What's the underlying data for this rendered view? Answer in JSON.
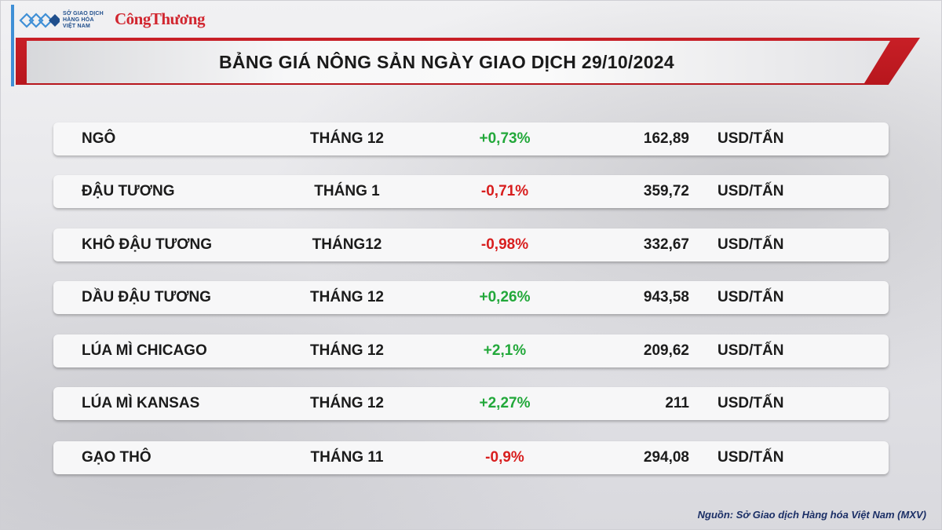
{
  "logo": {
    "exchange_lines": [
      "SỞ GIAO DỊCH",
      "HÀNG HÓA",
      "VIỆT NAM"
    ],
    "brand": "CôngThương"
  },
  "title": "BẢNG GIÁ NÔNG SẢN NGÀY GIAO DỊCH 29/10/2024",
  "colors": {
    "accent": "#c81f26",
    "positive": "#22a83a",
    "negative": "#d81e1e",
    "side_bar": "#3f8fd6"
  },
  "rows": [
    {
      "name": "NGÔ",
      "month": "THÁNG 12",
      "change": "+0,73%",
      "direction": "up",
      "price": "162,89",
      "unit": "USD/TẤN"
    },
    {
      "name": "ĐẬU TƯƠNG",
      "month": "THÁNG 1",
      "change": "-0,71%",
      "direction": "down",
      "price": "359,72",
      "unit": "USD/TẤN"
    },
    {
      "name": "KHÔ ĐẬU TƯƠNG",
      "month": "THÁNG12",
      "change": "-0,98%",
      "direction": "down",
      "price": "332,67",
      "unit": "USD/TẤN"
    },
    {
      "name": "DẦU ĐẬU TƯƠNG",
      "month": "THÁNG 12",
      "change": "+0,26%",
      "direction": "up",
      "price": "943,58",
      "unit": "USD/TẤN"
    },
    {
      "name": "LÚA MÌ CHICAGO",
      "month": "THÁNG 12",
      "change": "+2,1%",
      "direction": "up",
      "price": "209,62",
      "unit": "USD/TẤN"
    },
    {
      "name": "LÚA MÌ KANSAS",
      "month": "THÁNG 12",
      "change": "+2,27%",
      "direction": "up",
      "price": "211",
      "unit": "USD/TẤN"
    },
    {
      "name": "GẠO THÔ",
      "month": "THÁNG 11",
      "change": "-0,9%",
      "direction": "down",
      "price": "294,08",
      "unit": "USD/TẤN"
    }
  ],
  "source": "Nguồn: Sở Giao dịch Hàng hóa Việt Nam (MXV)"
}
